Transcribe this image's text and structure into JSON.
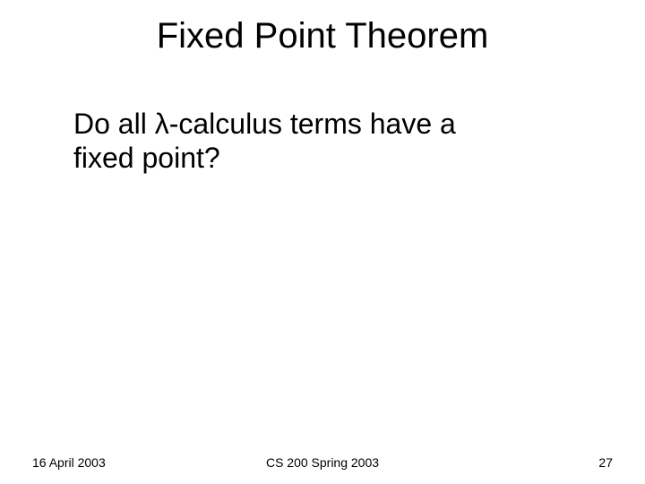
{
  "slide": {
    "title": "Fixed Point Theorem",
    "body_line1": "Do all λ-calculus terms have a",
    "body_line2": "fixed point?",
    "footer": {
      "date": "16 April 2003",
      "course": "CS 200 Spring 2003",
      "page": "27"
    },
    "colors": {
      "background": "#ffffff",
      "text": "#000000"
    },
    "typography": {
      "title_fontsize": 40,
      "body_fontsize": 32,
      "footer_fontsize": 14,
      "font_family": "Arial"
    }
  }
}
